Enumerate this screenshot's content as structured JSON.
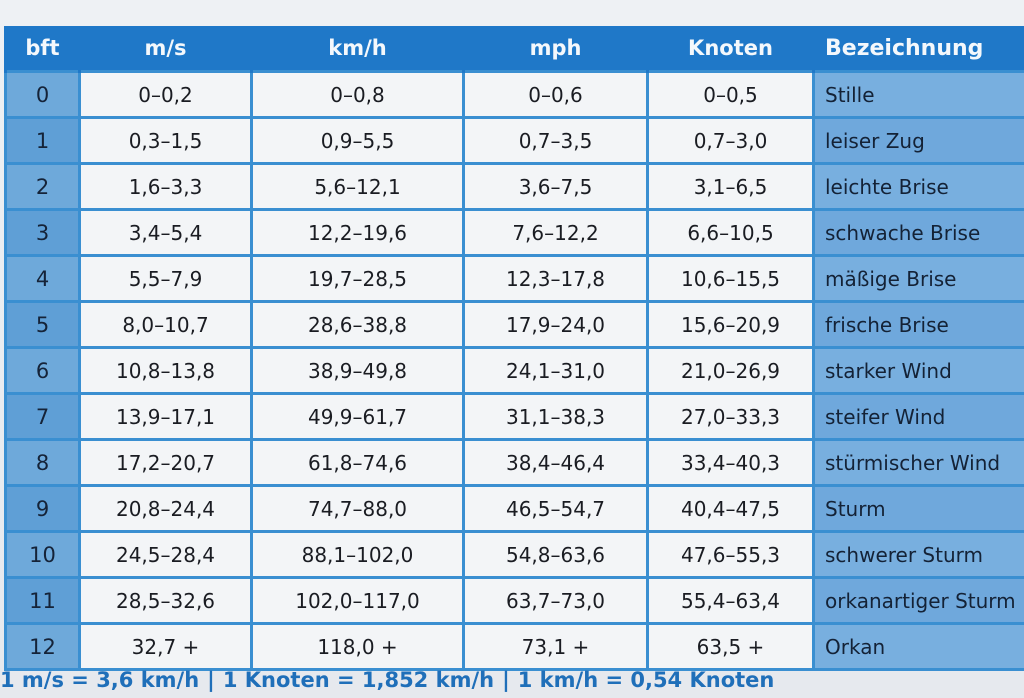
{
  "headers": {
    "bft": "bft",
    "ms": "m/s",
    "kmh": "km/h",
    "mph": "mph",
    "knots": "Knoten",
    "name": "Bezeichnung"
  },
  "rows": [
    {
      "bft": "0",
      "ms": "0–0,2",
      "kmh": "0–0,8",
      "mph": "0–0,6",
      "knots": "0–0,5",
      "name": "Stille"
    },
    {
      "bft": "1",
      "ms": "0,3–1,5",
      "kmh": "0,9–5,5",
      "mph": "0,7–3,5",
      "knots": "0,7–3,0",
      "name": "leiser Zug"
    },
    {
      "bft": "2",
      "ms": "1,6–3,3",
      "kmh": "5,6–12,1",
      "mph": "3,6–7,5",
      "knots": "3,1–6,5",
      "name": "leichte Brise"
    },
    {
      "bft": "3",
      "ms": "3,4–5,4",
      "kmh": "12,2–19,6",
      "mph": "7,6–12,2",
      "knots": "6,6–10,5",
      "name": "schwache Brise"
    },
    {
      "bft": "4",
      "ms": "5,5–7,9",
      "kmh": "19,7–28,5",
      "mph": "12,3–17,8",
      "knots": "10,6–15,5",
      "name": "mäßige Brise"
    },
    {
      "bft": "5",
      "ms": "8,0–10,7",
      "kmh": "28,6–38,8",
      "mph": "17,9–24,0",
      "knots": "15,6–20,9",
      "name": "frische Brise"
    },
    {
      "bft": "6",
      "ms": "10,8–13,8",
      "kmh": "38,9–49,8",
      "mph": "24,1–31,0",
      "knots": "21,0–26,9",
      "name": "starker Wind"
    },
    {
      "bft": "7",
      "ms": "13,9–17,1",
      "kmh": "49,9–61,7",
      "mph": "31,1–38,3",
      "knots": "27,0–33,3",
      "name": "steifer Wind"
    },
    {
      "bft": "8",
      "ms": "17,2–20,7",
      "kmh": "61,8–74,6",
      "mph": "38,4–46,4",
      "knots": "33,4–40,3",
      "name": "stürmischer Wind"
    },
    {
      "bft": "9",
      "ms": "20,8–24,4",
      "kmh": "74,7–88,0",
      "mph": "46,5–54,7",
      "knots": "40,4–47,5",
      "name": "Sturm"
    },
    {
      "bft": "10",
      "ms": "24,5–28,4",
      "kmh": "88,1–102,0",
      "mph": "54,8–63,6",
      "knots": "47,6–55,3",
      "name": "schwerer Sturm"
    },
    {
      "bft": "11",
      "ms": "28,5–32,6",
      "kmh": "102,0–117,0",
      "mph": "63,7–73,0",
      "knots": "55,4–63,4",
      "name": "orkanartiger Sturm"
    },
    {
      "bft": "12",
      "ms": "32,7 +",
      "kmh": "118,0 +",
      "mph": "73,1 +",
      "knots": "63,5 +",
      "name": "Orkan"
    }
  ],
  "footnote": {
    "part1": "1 m/s = 3,6 km/h",
    "part2": "1 Knoten = 1,852 km/h",
    "part3": "1 km/h = 0,54 Knoten",
    "separator": "|"
  },
  "colors": {
    "header_bg": "#1f78c8",
    "grid_line": "#3a8fd1",
    "cell_bg": "#f3f5f7",
    "name_bg": "#6fa8dc",
    "footnote_text": "#1f6fb9"
  }
}
